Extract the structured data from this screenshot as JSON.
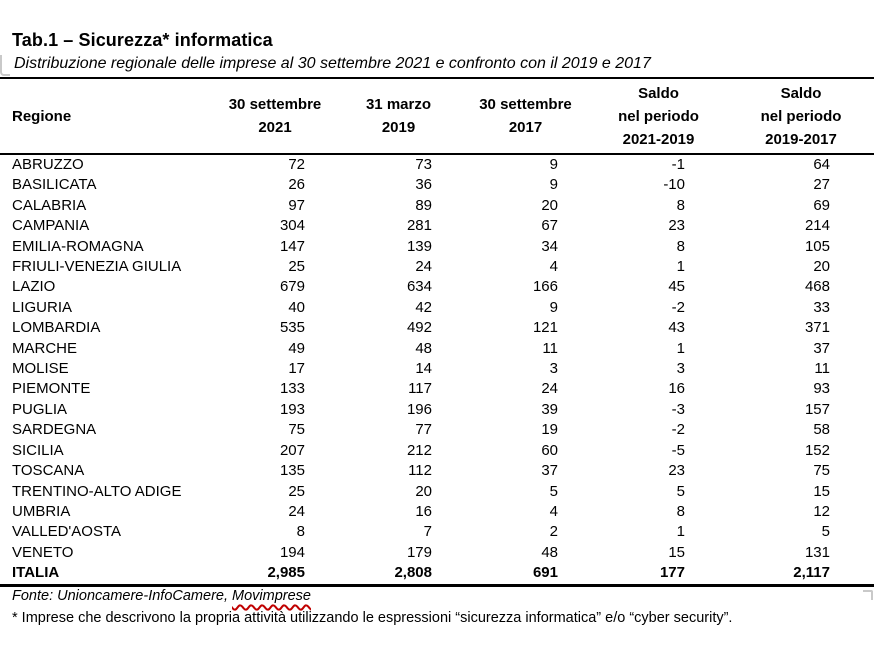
{
  "title": "Tab.1 – Sicurezza* informatica",
  "subtitle": "Distribuzione regionale delle imprese al 30 settembre 2021 e confronto con il 2019 e 2017",
  "table": {
    "headers": [
      {
        "lines": [
          "Regione"
        ]
      },
      {
        "lines": [
          "30 settembre",
          "2021"
        ]
      },
      {
        "lines": [
          "31 marzo",
          "2019"
        ]
      },
      {
        "lines": [
          "30 settembre",
          "2017"
        ]
      },
      {
        "lines": [
          "Saldo",
          "nel periodo",
          "2021-2019"
        ]
      },
      {
        "lines": [
          "Saldo",
          "nel periodo",
          "2019-2017"
        ]
      }
    ],
    "rows": [
      [
        "ABRUZZO",
        "72",
        "73",
        "9",
        "-1",
        "64"
      ],
      [
        "BASILICATA",
        "26",
        "36",
        "9",
        "-10",
        "27"
      ],
      [
        "CALABRIA",
        "97",
        "89",
        "20",
        "8",
        "69"
      ],
      [
        "CAMPANIA",
        "304",
        "281",
        "67",
        "23",
        "214"
      ],
      [
        "EMILIA-ROMAGNA",
        "147",
        "139",
        "34",
        "8",
        "105"
      ],
      [
        "FRIULI-VENEZIA GIULIA",
        "25",
        "24",
        "4",
        "1",
        "20"
      ],
      [
        "LAZIO",
        "679",
        "634",
        "166",
        "45",
        "468"
      ],
      [
        "LIGURIA",
        "40",
        "42",
        "9",
        "-2",
        "33"
      ],
      [
        "LOMBARDIA",
        "535",
        "492",
        "121",
        "43",
        "371"
      ],
      [
        "MARCHE",
        "49",
        "48",
        "11",
        "1",
        "37"
      ],
      [
        "MOLISE",
        "17",
        "14",
        "3",
        "3",
        "11"
      ],
      [
        "PIEMONTE",
        "133",
        "117",
        "24",
        "16",
        "93"
      ],
      [
        "PUGLIA",
        "193",
        "196",
        "39",
        "-3",
        "157"
      ],
      [
        "SARDEGNA",
        "75",
        "77",
        "19",
        "-2",
        "58"
      ],
      [
        "SICILIA",
        "207",
        "212",
        "60",
        "-5",
        "152"
      ],
      [
        "TOSCANA",
        "135",
        "112",
        "37",
        "23",
        "75"
      ],
      [
        "TRENTINO-ALTO ADIGE",
        "25",
        "20",
        "5",
        "5",
        "15"
      ],
      [
        "UMBRIA",
        "24",
        "16",
        "4",
        "8",
        "12"
      ],
      [
        "VALLED'AOSTA",
        "8",
        "7",
        "2",
        "1",
        "5"
      ],
      [
        "VENETO",
        "194",
        "179",
        "48",
        "15",
        "131"
      ]
    ],
    "total": [
      "ITALIA",
      "2,985",
      "2,808",
      "691",
      "177",
      "2,117"
    ]
  },
  "footer": {
    "fonte_prefix": "Fonte: Unioncamere-InfoCamere, ",
    "fonte_word": "Movimprese",
    "footnote": "* Imprese che descrivono la propria attività utilizzando le espressioni “sicurezza informatica” e/o “cyber security”."
  },
  "colors": {
    "text": "#000000",
    "rule": "#000000",
    "spellcheck_squiggle": "#c00000",
    "frame_fragment": "#c9c9c9"
  }
}
